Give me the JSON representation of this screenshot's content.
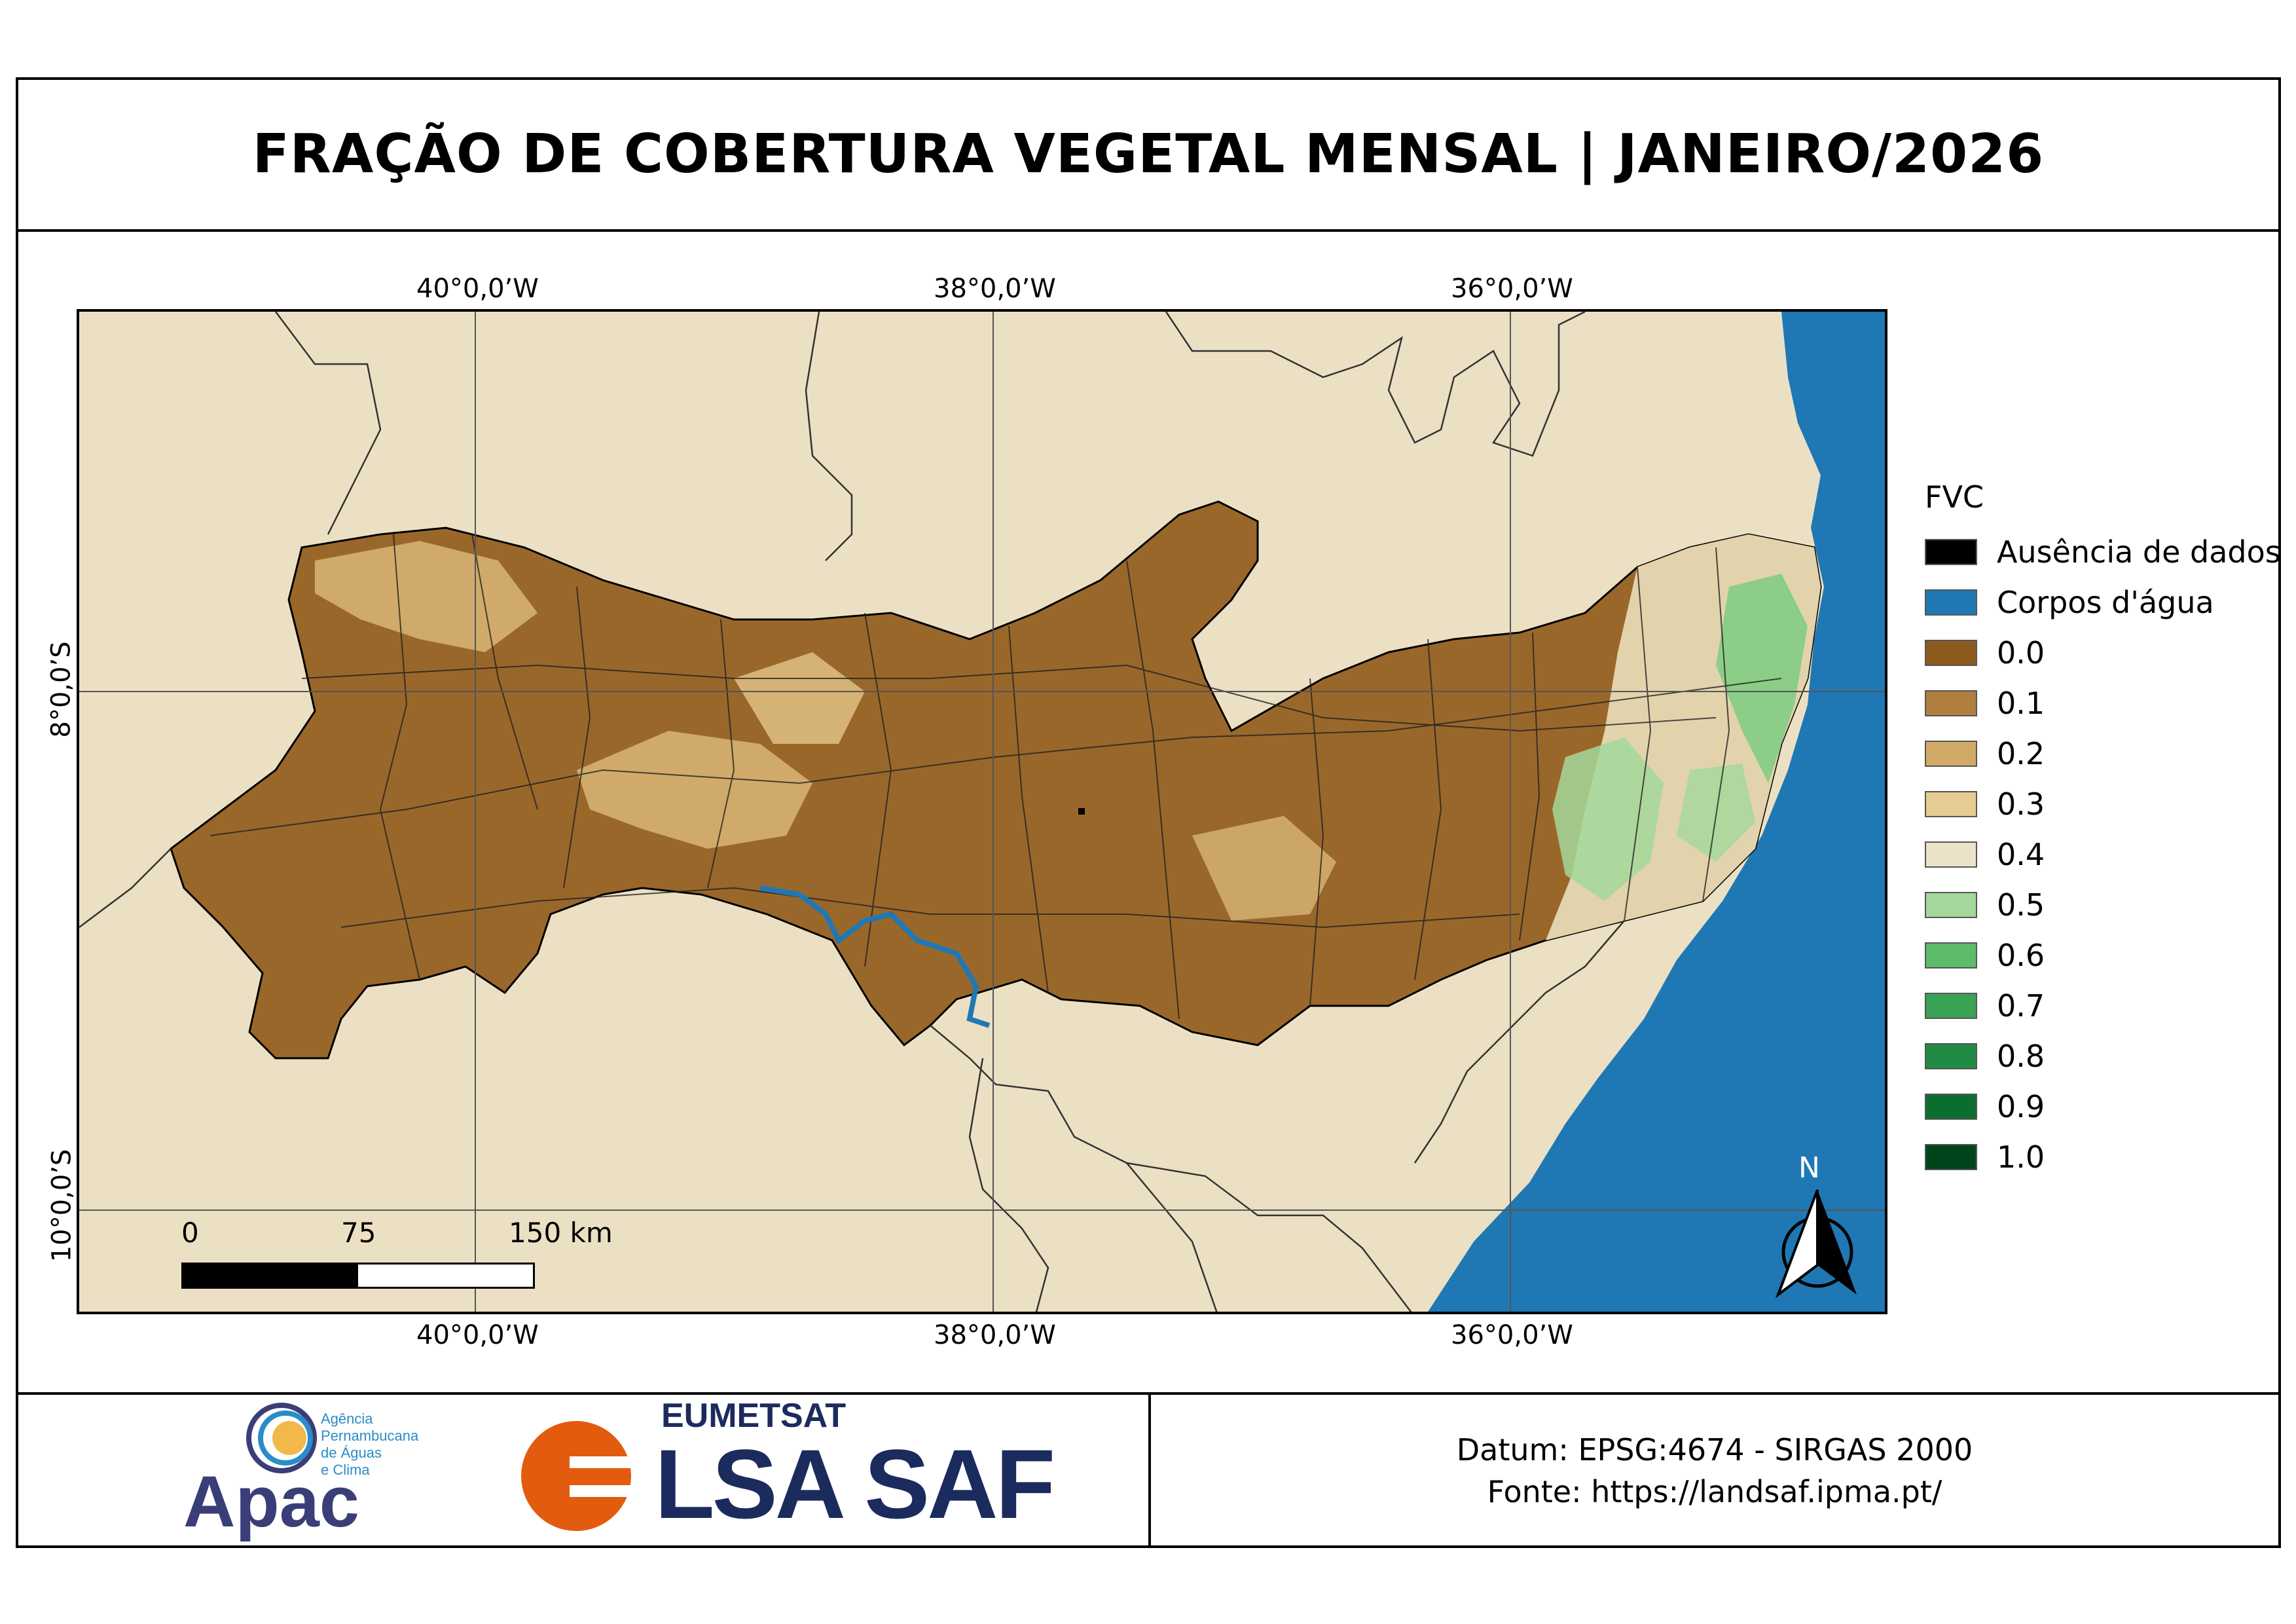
{
  "title": "FRAÇÃO DE COBERTURA VEGETAL MENSAL | JANEIRO/2026",
  "graticule": {
    "top": [
      "40°0,0’W",
      "38°0,0’W",
      "36°0,0’W"
    ],
    "bottom": [
      "40°0,0’W",
      "38°0,0’W",
      "36°0,0’W"
    ],
    "left": [
      "8°0,0’S",
      "10°0,0’S"
    ]
  },
  "scale_bar": {
    "labels": [
      "0",
      "75",
      "150 km"
    ]
  },
  "north_arrow": {
    "label": "N",
    "icon": "north-arrow-icon"
  },
  "legend": {
    "title": "FVC",
    "items": [
      {
        "label": "Ausência de dados",
        "color": "#000000"
      },
      {
        "label": "Corpos d'água",
        "color": "#1f78b4"
      },
      {
        "label": "0.0",
        "color": "#8c5a1e"
      },
      {
        "label": "0.1",
        "color": "#b07e3e"
      },
      {
        "label": "0.2",
        "color": "#d2aa68"
      },
      {
        "label": "0.3",
        "color": "#e6cc92"
      },
      {
        "label": "0.4",
        "color": "#ece2c8"
      },
      {
        "label": "0.5",
        "color": "#a3d89a"
      },
      {
        "label": "0.6",
        "color": "#5cbc6a"
      },
      {
        "label": "0.7",
        "color": "#3aa356"
      },
      {
        "label": "0.8",
        "color": "#218a45"
      },
      {
        "label": "0.9",
        "color": "#0b6e2e"
      },
      {
        "label": "1.0",
        "color": "#00441b"
      }
    ]
  },
  "footer": {
    "apac_name": "Apac",
    "apac_sub": [
      "Agência",
      "Pernambucana",
      "de Águas",
      "e Clima"
    ],
    "eumetsat": "EUMETSAT",
    "lsasaf": "LSA SAF",
    "datum": "Datum: EPSG:4674 - SIRGAS 2000",
    "fonte": "Fonte: https://landsaf.ipma.pt/"
  },
  "colors": {
    "background_land": "#ece0c4",
    "ocean": "#1f78b4",
    "border": "#000000"
  }
}
